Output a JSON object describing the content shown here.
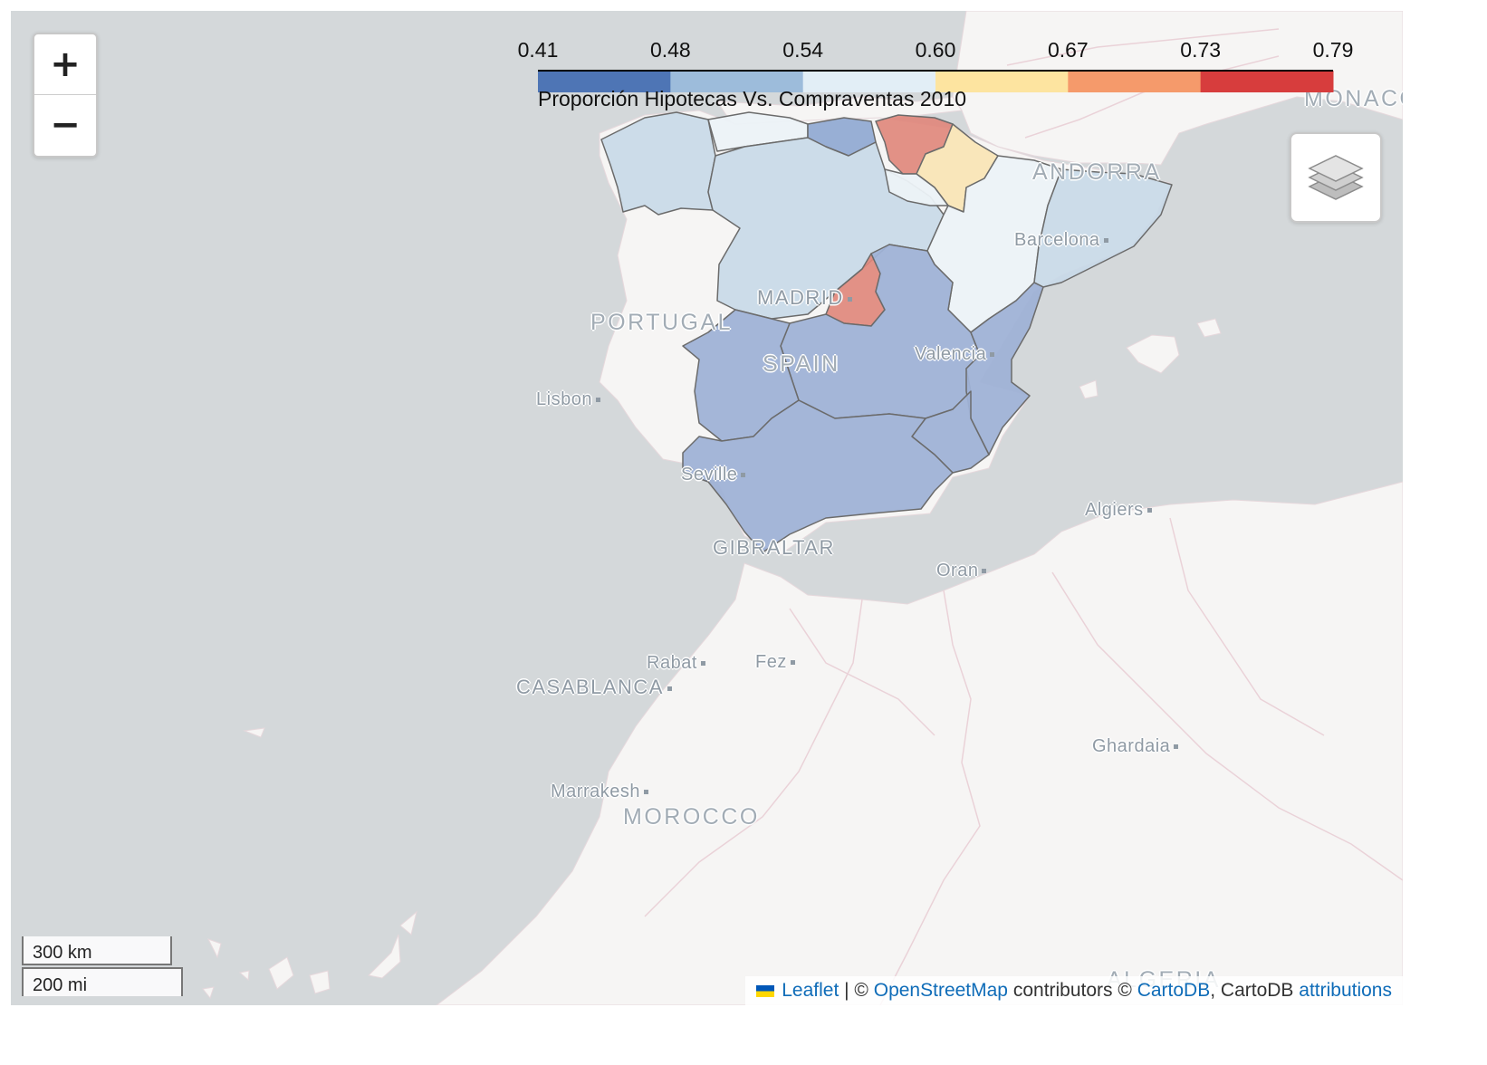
{
  "legend": {
    "title": "Proporción Hipotecas Vs. Compraventas 2010",
    "ticks": [
      "0.41",
      "0.48",
      "0.54",
      "0.60",
      "0.67",
      "0.73",
      "0.79"
    ],
    "colors": [
      "#4e75b5",
      "#9dbcdb",
      "#e2eef6",
      "#fde4a0",
      "#f59a6b",
      "#d73d3d"
    ]
  },
  "regions": [
    {
      "name": "Galicia",
      "value_bin": 1,
      "color": "#c8d9e8"
    },
    {
      "name": "Asturias",
      "value_bin": 2,
      "color": "#ecf2f7"
    },
    {
      "name": "Cantabria",
      "value_bin": 0,
      "color": "#8ea7d1"
    },
    {
      "name": "País Vasco",
      "value_bin": 5,
      "color": "#e0867a"
    },
    {
      "name": "Navarra",
      "value_bin": 3,
      "color": "#f9e5b6"
    },
    {
      "name": "La Rioja",
      "value_bin": 2,
      "color": "#ecf2f7"
    },
    {
      "name": "Castilla y León",
      "value_bin": 1,
      "color": "#c8d9e8"
    },
    {
      "name": "Aragón",
      "value_bin": 2,
      "color": "#ecf2f7"
    },
    {
      "name": "Cataluña",
      "value_bin": 1,
      "color": "#c8d9e8"
    },
    {
      "name": "Madrid",
      "value_bin": 5,
      "color": "#e0867a"
    },
    {
      "name": "Castilla-La Mancha",
      "value_bin": 0,
      "color": "#9fb2d6"
    },
    {
      "name": "Extremadura",
      "value_bin": 0,
      "color": "#9fb2d6"
    },
    {
      "name": "Comunidad Valenciana",
      "value_bin": 0,
      "color": "#9fb2d6"
    },
    {
      "name": "Murcia",
      "value_bin": 0,
      "color": "#9fb2d6"
    },
    {
      "name": "Andalucía",
      "value_bin": 0,
      "color": "#9fb2d6"
    }
  ],
  "labels": {
    "monaco": "MONACO",
    "andorra": "ANDORRA",
    "barcelona": "Barcelona",
    "madrid": "MADRID",
    "portugal": "PORTUGAL",
    "spain": "SPAIN",
    "valencia": "Valencia",
    "lisbon": "Lisbon",
    "seville": "Seville",
    "gibraltar": "GIBRALTAR",
    "algiers": "Algiers",
    "oran": "Oran",
    "rabat": "Rabat",
    "fez": "Fez",
    "casablanca": "CASABLANCA",
    "ghardaia": "Ghardaia",
    "marrakesh": "Marrakesh",
    "morocco": "MOROCCO",
    "algeria": "ALGERIA"
  },
  "controls": {
    "zoom_in": "+",
    "zoom_out": "−"
  },
  "scale": {
    "km": "300 km",
    "mi": "200 mi"
  },
  "attribution": {
    "leaflet": "Leaflet",
    "sep1": " | © ",
    "osm": "OpenStreetMap",
    "contrib": " contributors © ",
    "cartodb": "CartoDB",
    "sep2": ", CartoDB ",
    "attributions": "attributions"
  }
}
